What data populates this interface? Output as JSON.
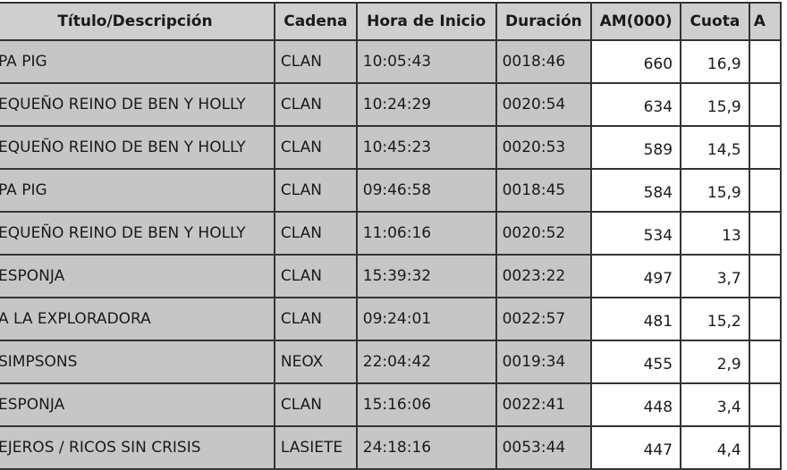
{
  "columns": [
    "Título/Descripción",
    "Cadena",
    "Hora de Inicio",
    "Duración",
    "AM(000)",
    "Cuota",
    "A"
  ],
  "rows": [
    {
      "titulo": "PA PIG",
      "cadena": "CLAN",
      "hora": "10:05:43",
      "duracion": "0018:46",
      "am": "660",
      "cuota": "16,9"
    },
    {
      "titulo": "EQUEÑO REINO DE BEN Y HOLLY",
      "cadena": "CLAN",
      "hora": "10:24:29",
      "duracion": "0020:54",
      "am": "634",
      "cuota": "15,9"
    },
    {
      "titulo": "EQUEÑO REINO DE BEN Y HOLLY",
      "cadena": "CLAN",
      "hora": "10:45:23",
      "duracion": "0020:53",
      "am": "589",
      "cuota": "14,5"
    },
    {
      "titulo": "PA PIG",
      "cadena": "CLAN",
      "hora": "09:46:58",
      "duracion": "0018:45",
      "am": "584",
      "cuota": "15,9"
    },
    {
      "titulo": "EQUEÑO REINO DE BEN Y HOLLY",
      "cadena": "CLAN",
      "hora": "11:06:16",
      "duracion": "0020:52",
      "am": "534",
      "cuota": "13"
    },
    {
      "titulo": "ESPONJA",
      "cadena": "CLAN",
      "hora": "15:39:32",
      "duracion": "0023:22",
      "am": "497",
      "cuota": "3,7"
    },
    {
      "titulo": "A LA EXPLORADORA",
      "cadena": "CLAN",
      "hora": "09:24:01",
      "duracion": "0022:57",
      "am": "481",
      "cuota": "15,2"
    },
    {
      "titulo": "SIMPSONS",
      "cadena": "NEOX",
      "hora": "22:04:42",
      "duracion": "0019:34",
      "am": "455",
      "cuota": "2,9"
    },
    {
      "titulo": "ESPONJA",
      "cadena": "CLAN",
      "hora": "15:16:06",
      "duracion": "0022:41",
      "am": "448",
      "cuota": "3,4"
    },
    {
      "titulo": "EJEROS / RICOS SIN CRISIS",
      "cadena": "LASIETE",
      "hora": "24:18:16",
      "duracion": "0053:44",
      "am": "447",
      "cuota": "4,4"
    }
  ]
}
